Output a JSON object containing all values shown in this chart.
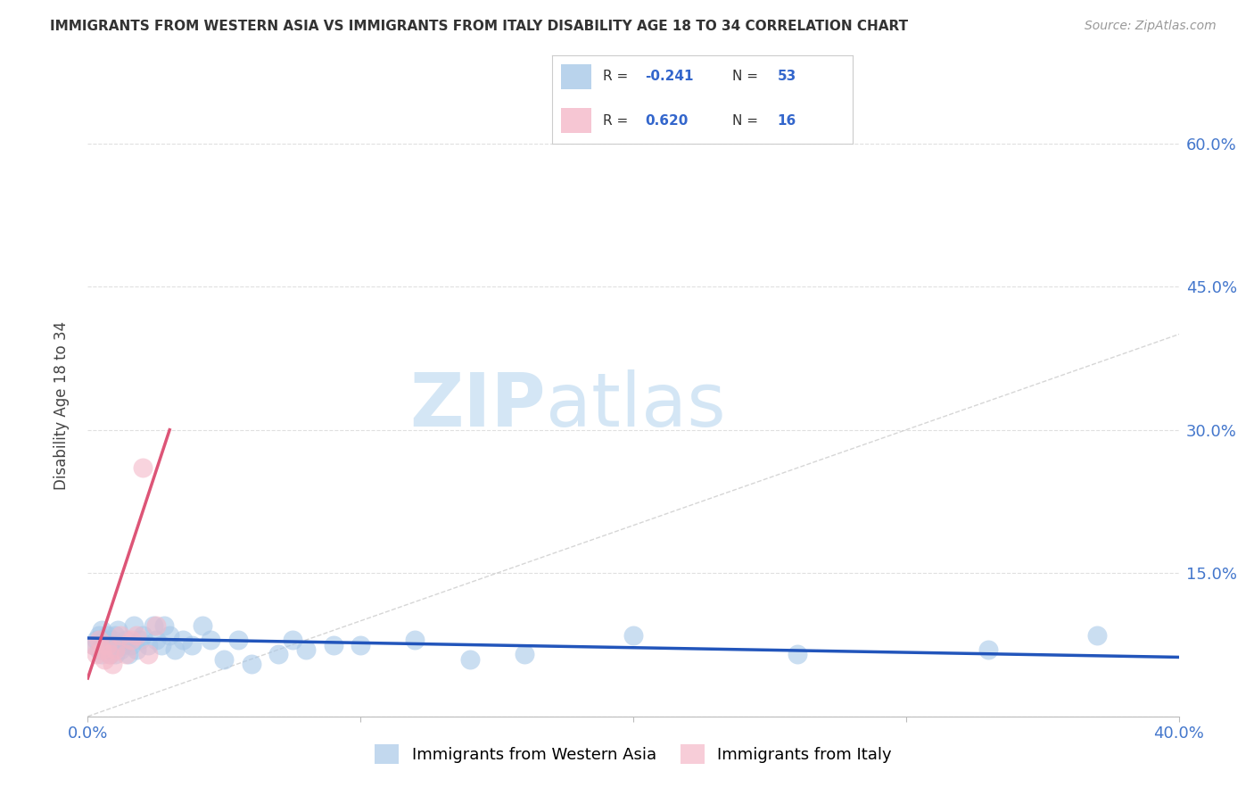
{
  "title": "IMMIGRANTS FROM WESTERN ASIA VS IMMIGRANTS FROM ITALY DISABILITY AGE 18 TO 34 CORRELATION CHART",
  "source": "Source: ZipAtlas.com",
  "ylabel": "Disability Age 18 to 34",
  "xlim": [
    0.0,
    0.4
  ],
  "ylim": [
    0.0,
    0.65
  ],
  "blue_color": "#a8c8e8",
  "pink_color": "#f4b8c8",
  "blue_line_color": "#2255bb",
  "pink_line_color": "#dd5577",
  "diagonal_color": "#cccccc",
  "watermark_zip": "ZIP",
  "watermark_atlas": "atlas",
  "legend_R_blue": "-0.241",
  "legend_N_blue": "53",
  "legend_R_pink": "0.620",
  "legend_N_pink": "16",
  "blue_scatter_x": [
    0.002,
    0.003,
    0.004,
    0.004,
    0.005,
    0.005,
    0.006,
    0.006,
    0.007,
    0.007,
    0.008,
    0.008,
    0.009,
    0.009,
    0.01,
    0.01,
    0.011,
    0.011,
    0.012,
    0.013,
    0.014,
    0.015,
    0.016,
    0.017,
    0.018,
    0.019,
    0.02,
    0.022,
    0.024,
    0.025,
    0.027,
    0.028,
    0.03,
    0.032,
    0.035,
    0.038,
    0.042,
    0.045,
    0.05,
    0.055,
    0.06,
    0.07,
    0.075,
    0.08,
    0.09,
    0.1,
    0.12,
    0.14,
    0.16,
    0.2,
    0.26,
    0.33,
    0.37
  ],
  "blue_scatter_y": [
    0.075,
    0.08,
    0.07,
    0.085,
    0.065,
    0.09,
    0.075,
    0.08,
    0.07,
    0.085,
    0.065,
    0.075,
    0.08,
    0.07,
    0.085,
    0.065,
    0.075,
    0.09,
    0.07,
    0.075,
    0.08,
    0.065,
    0.075,
    0.095,
    0.07,
    0.08,
    0.085,
    0.075,
    0.095,
    0.08,
    0.075,
    0.095,
    0.085,
    0.07,
    0.08,
    0.075,
    0.095,
    0.08,
    0.06,
    0.08,
    0.055,
    0.065,
    0.08,
    0.07,
    0.075,
    0.075,
    0.08,
    0.06,
    0.065,
    0.085,
    0.065,
    0.07,
    0.085
  ],
  "pink_scatter_x": [
    0.002,
    0.003,
    0.004,
    0.005,
    0.006,
    0.007,
    0.008,
    0.009,
    0.01,
    0.012,
    0.014,
    0.016,
    0.018,
    0.02,
    0.022,
    0.025
  ],
  "pink_scatter_y": [
    0.075,
    0.065,
    0.08,
    0.07,
    0.06,
    0.075,
    0.065,
    0.055,
    0.07,
    0.085,
    0.065,
    0.08,
    0.085,
    0.26,
    0.065,
    0.095
  ],
  "blue_trend_x": [
    0.0,
    0.4
  ],
  "blue_trend_y": [
    0.082,
    0.062
  ],
  "pink_trend_x": [
    0.0,
    0.03
  ],
  "pink_trend_y": [
    0.04,
    0.3
  ],
  "grid_color": "#e0e0e0",
  "tick_color": "#4477cc",
  "title_color": "#333333",
  "source_color": "#999999"
}
